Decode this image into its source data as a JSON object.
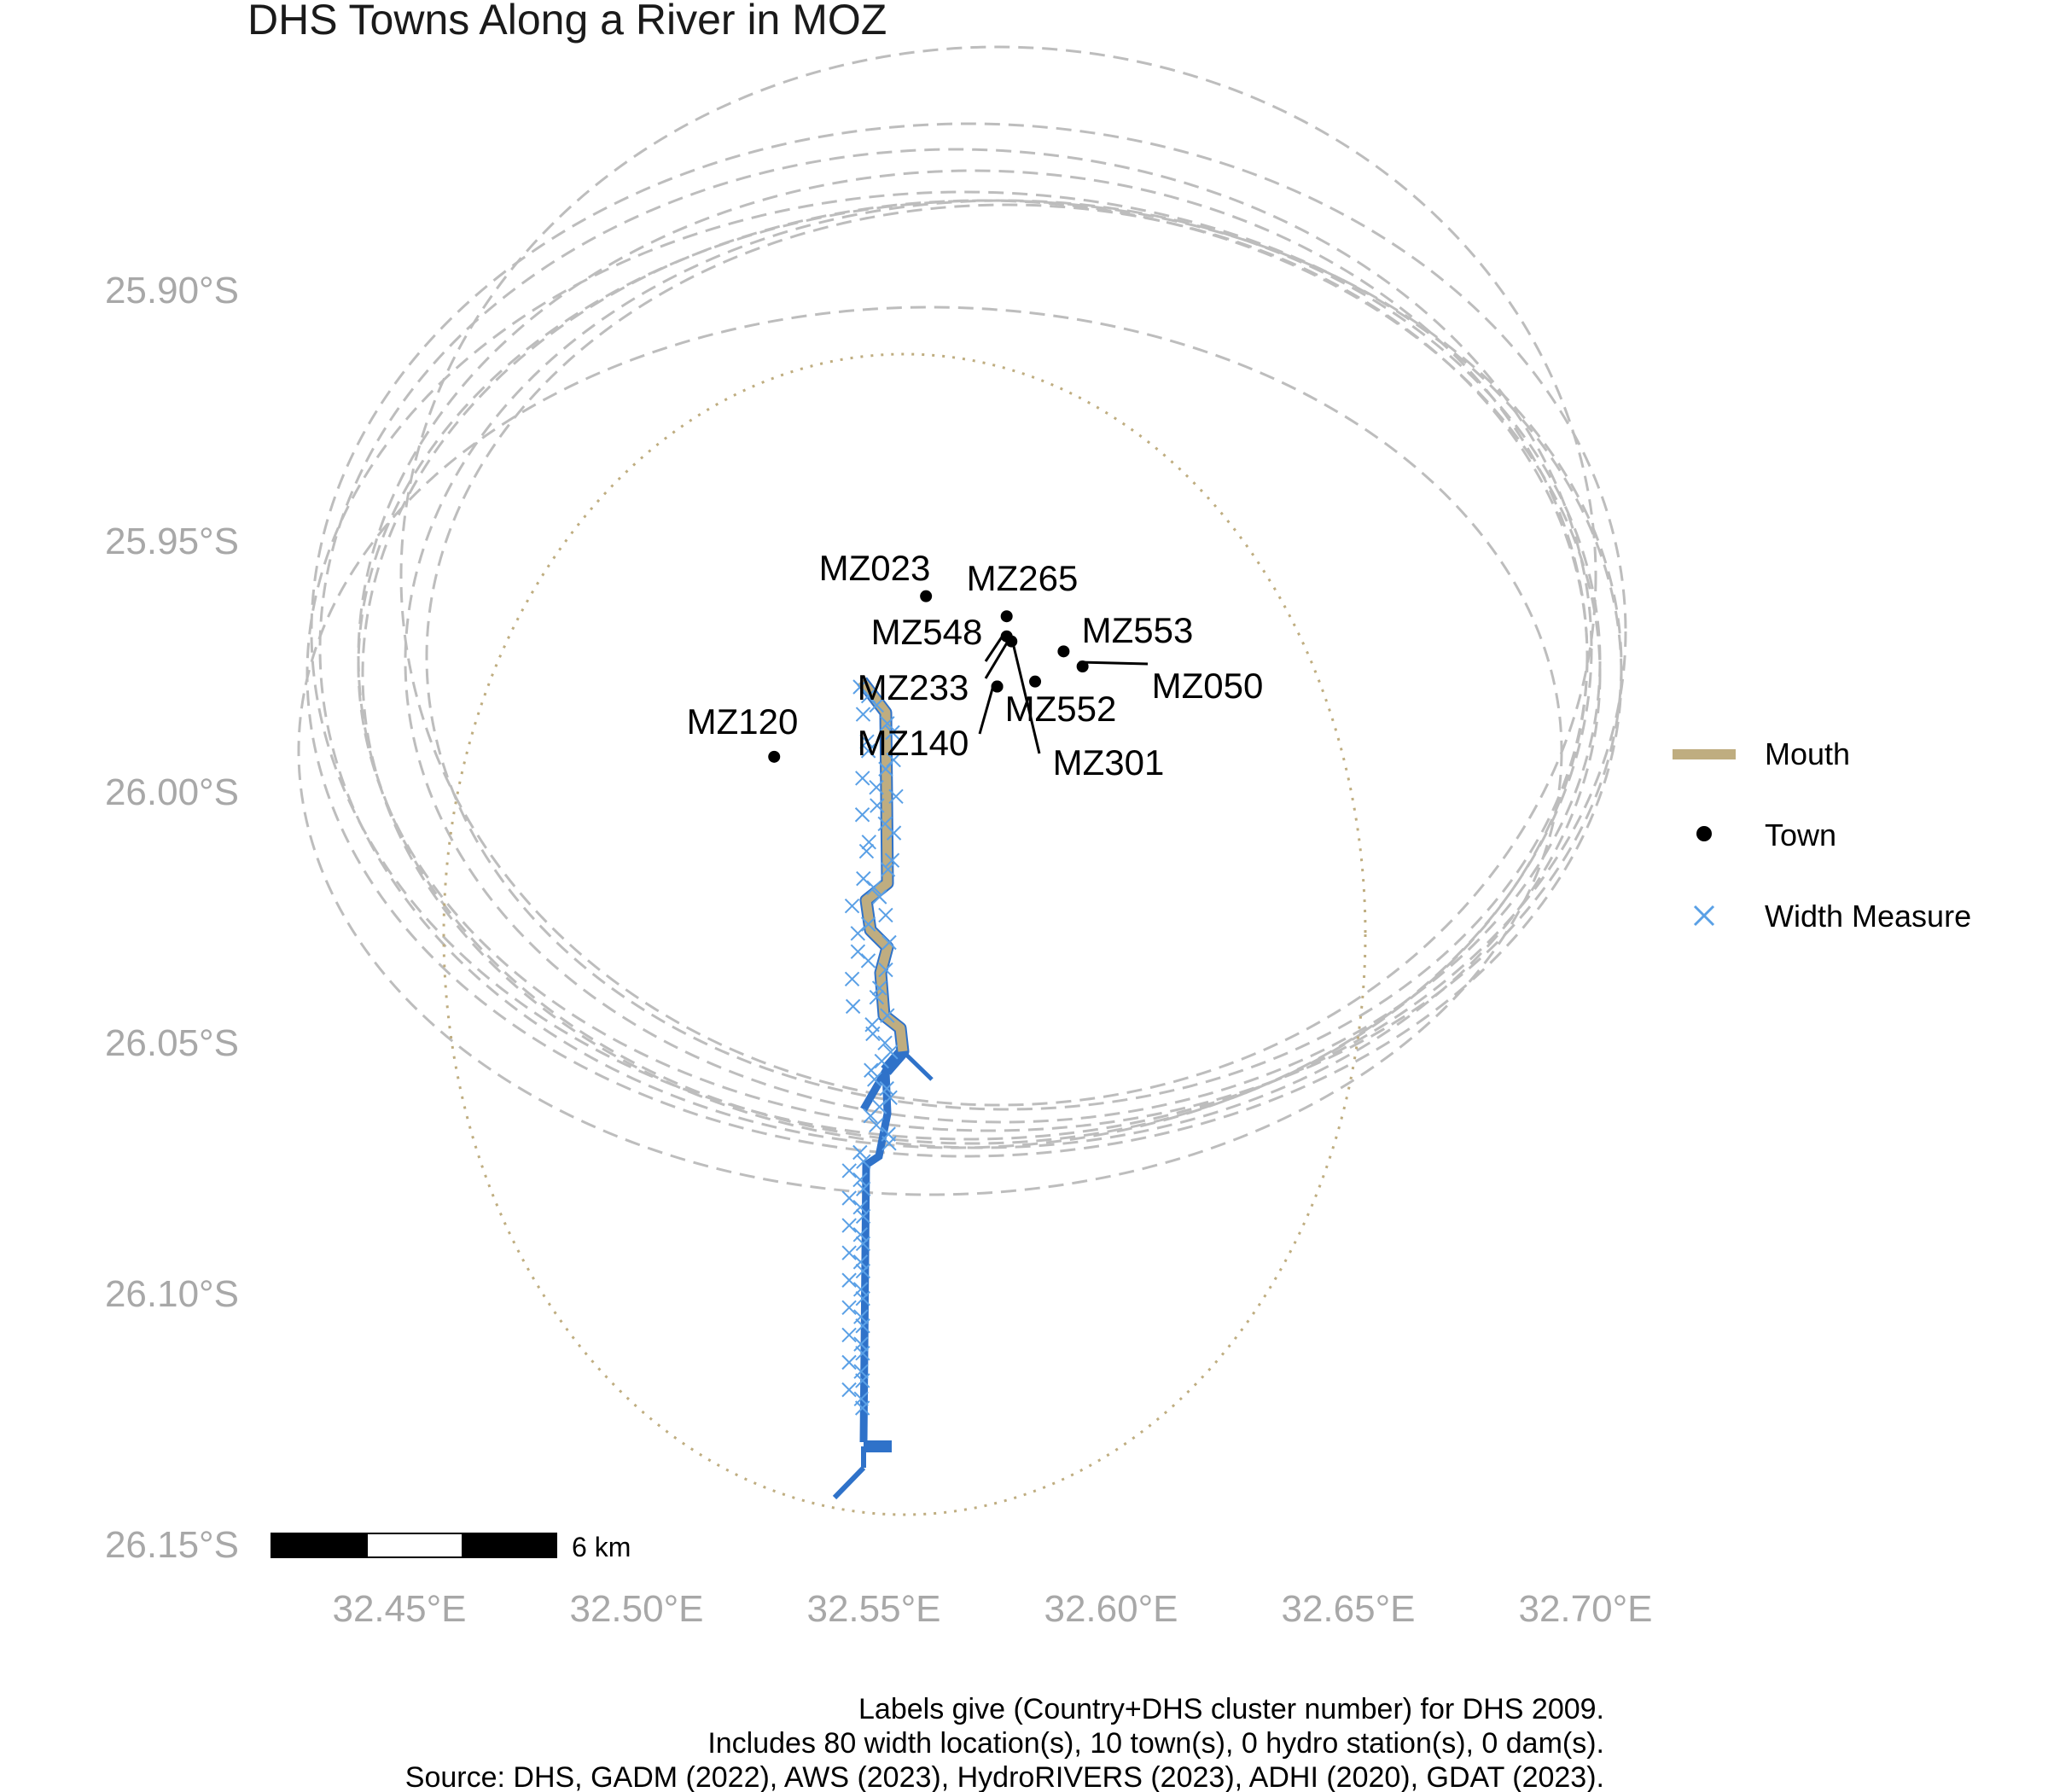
{
  "title": "DHS Towns Along a River in MOZ",
  "colors": {
    "mouth": "#bfad80",
    "river": "#2f72c9",
    "width_measure": "#5aa0e6",
    "town": "#000000",
    "buffer": "#bdbdbd",
    "tick": "#a8a8a8"
  },
  "axes": {
    "x_ticks": [
      {
        "value": 32.45,
        "label": "32.45°E"
      },
      {
        "value": 32.5,
        "label": "32.50°E"
      },
      {
        "value": 32.55,
        "label": "32.55°E"
      },
      {
        "value": 32.6,
        "label": "32.60°E"
      },
      {
        "value": 32.65,
        "label": "32.65°E"
      },
      {
        "value": 32.7,
        "label": "32.70°E"
      }
    ],
    "y_ticks": [
      {
        "value": -25.9,
        "label": "25.90°S"
      },
      {
        "value": -25.95,
        "label": "25.95°S"
      },
      {
        "value": -26.0,
        "label": "26.00°S"
      },
      {
        "value": -26.05,
        "label": "26.05°S"
      },
      {
        "value": -26.1,
        "label": "26.10°S"
      },
      {
        "value": -26.15,
        "label": "26.15°S"
      }
    ]
  },
  "towns": [
    {
      "id": "MZ023",
      "lon": 32.561,
      "lat": -25.961
    },
    {
      "id": "MZ265",
      "lon": 32.578,
      "lat": -25.965
    },
    {
      "id": "MZ548",
      "lon": 32.578,
      "lat": -25.969
    },
    {
      "id": "MZ553",
      "lon": 32.59,
      "lat": -25.972
    },
    {
      "id": "MZ050",
      "lon": 32.594,
      "lat": -25.975
    },
    {
      "id": "MZ233",
      "lon": 32.576,
      "lat": -25.979
    },
    {
      "id": "MZ552",
      "lon": 32.584,
      "lat": -25.978
    },
    {
      "id": "MZ140",
      "lon": 32.576,
      "lat": -25.979
    },
    {
      "id": "MZ301",
      "lon": 32.579,
      "lat": -25.97
    },
    {
      "id": "MZ120",
      "lon": 32.529,
      "lat": -25.993
    }
  ],
  "legend": {
    "mouth": "Mouth",
    "town": "Town",
    "width_measure": "Width Measure"
  },
  "scale_bar": {
    "label": "6 km"
  },
  "caption": {
    "line1": "Labels give (Country+DHS cluster number) for DHS 2009.",
    "line2": "Includes 80 width location(s), 10 town(s), 0 hydro station(s), 0 dam(s).",
    "line3": "Source: DHS, GADM (2022), AWS (2023), HydroRIVERS (2023), ADHI (2020), GDAT (2023)."
  }
}
